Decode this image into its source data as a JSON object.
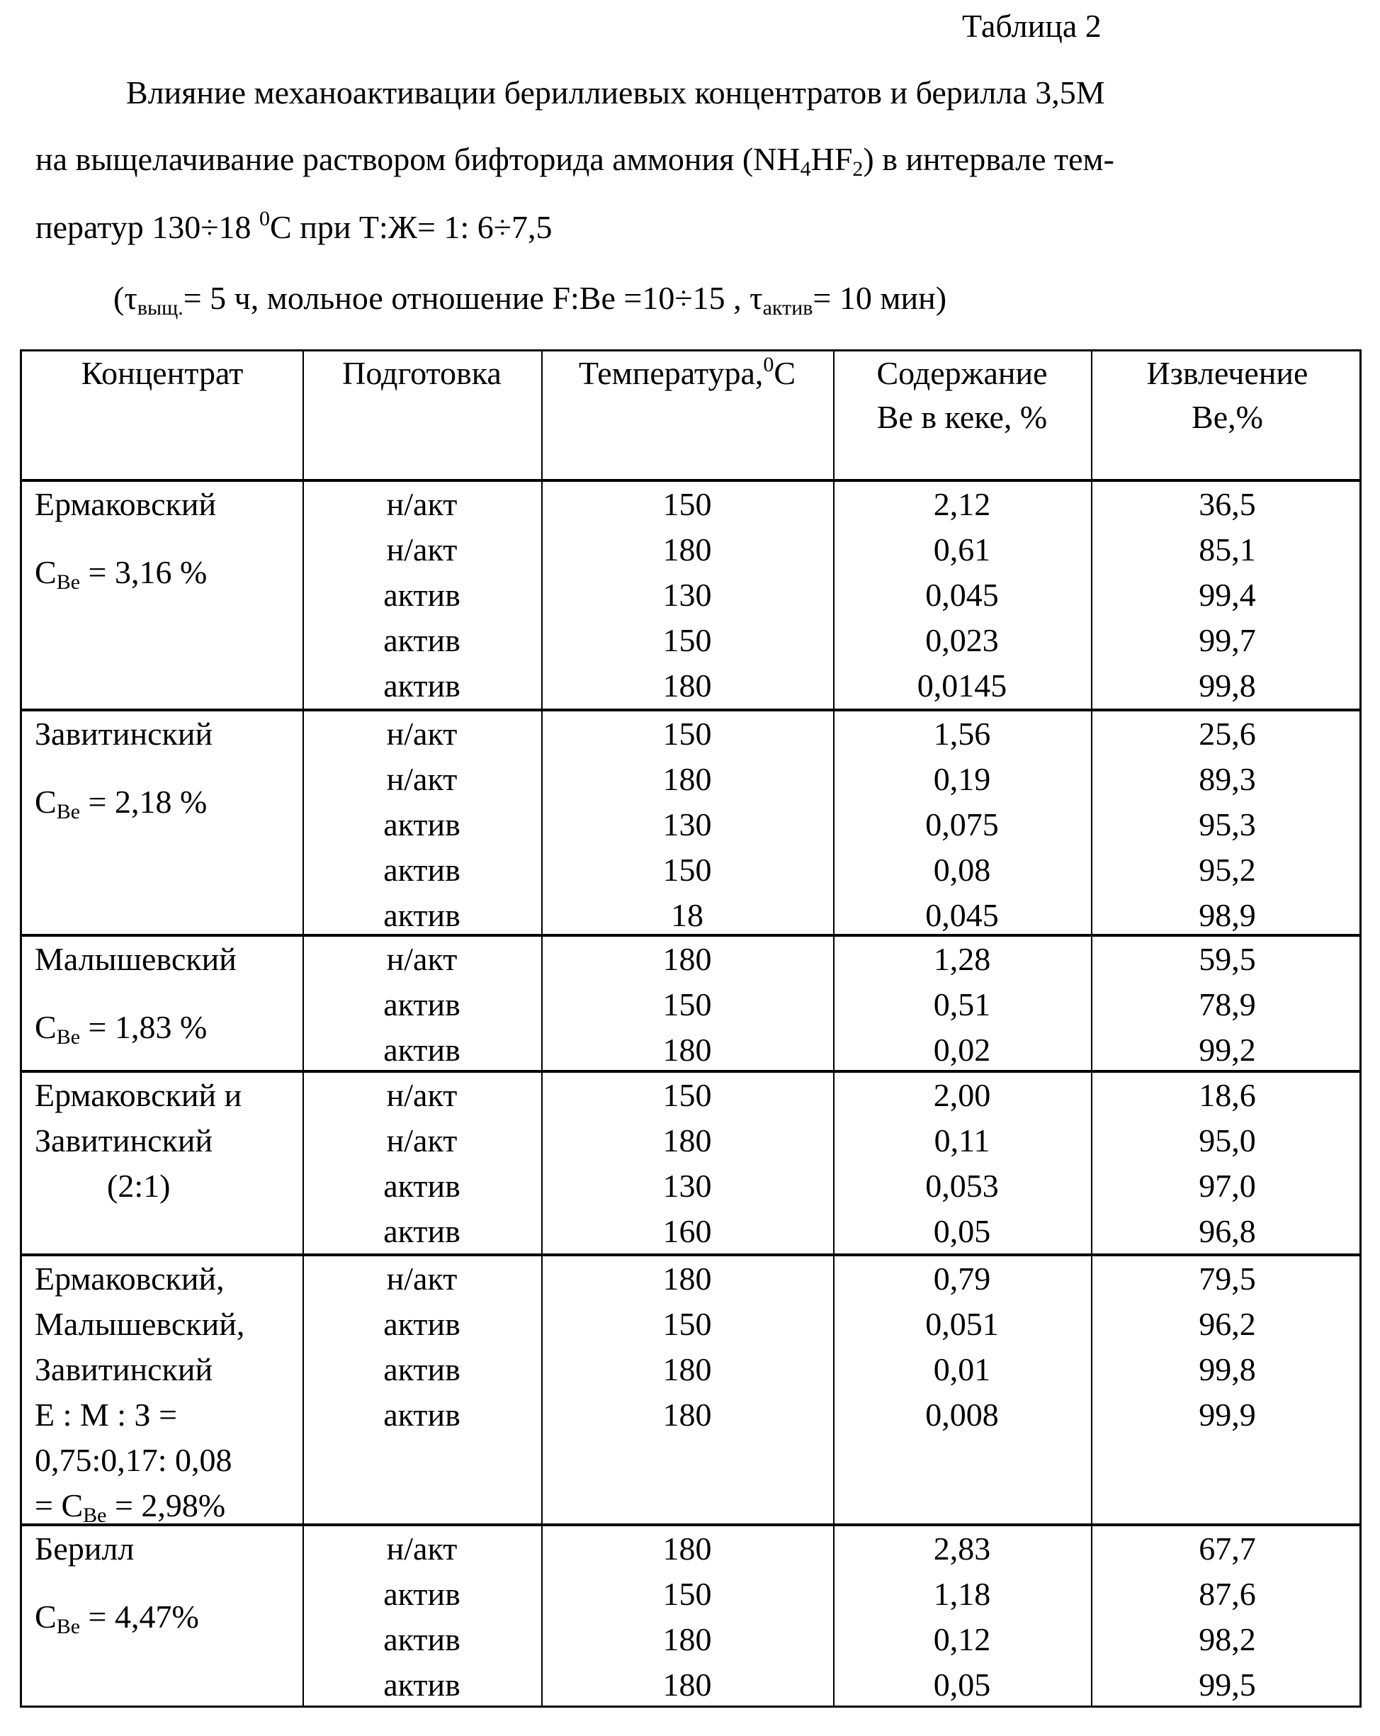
{
  "table_label": "Таблица 2",
  "title": {
    "line1": "Влияние механоактивации бериллиевых концентратов и берилла 3,5М",
    "line2_a": "на выщелачивание раствором бифторида аммония (NH",
    "line2_sub1": "4",
    "line2_b": "HF",
    "line2_sub2": "2",
    "line2_c": ") в интервале тем-",
    "line3_a": "ператур 130÷18 ",
    "line3_sup": "0",
    "line3_b": "С при Т:Ж= 1: 6÷7,5",
    "cond_a": "(τ",
    "cond_sub1": "выщ.",
    "cond_b": "= 5 ч, мольное отношение F:Be =10÷15 , τ",
    "cond_sub2": "актив",
    "cond_c": "= 10 мин)"
  },
  "headers": {
    "concentrate": "Концентрат",
    "preparation": "Подготовка",
    "temperature": "Температура,",
    "temperature_sup": "0",
    "temperature_unit": "С",
    "content_1": "Содержание",
    "content_2": "Be в кеке, %",
    "extraction_1": "Извлечение",
    "extraction_2": "Be,%"
  },
  "groups": [
    {
      "label": [
        "Ермаковский",
        "C_Be = 3,16 %"
      ],
      "rows": [
        [
          "н/акт",
          "150",
          "2,12",
          "36,5"
        ],
        [
          "н/акт",
          "180",
          "0,61",
          "85,1"
        ],
        [
          "актив",
          "130",
          "0,045",
          "99,4"
        ],
        [
          "актив",
          "150",
          "0,023",
          "99,7"
        ],
        [
          "актив",
          "180",
          "0,0145",
          "99,8"
        ]
      ]
    },
    {
      "label": [
        "Завитинский",
        "C_Be = 2,18 %"
      ],
      "rows": [
        [
          "н/акт",
          "150",
          "1,56",
          "25,6"
        ],
        [
          "н/акт",
          "180",
          "0,19",
          "89,3"
        ],
        [
          "актив",
          "130",
          "0,075",
          "95,3"
        ],
        [
          "актив",
          "150",
          "0,08",
          "95,2"
        ],
        [
          "актив",
          "18",
          "0,045",
          "98,9"
        ]
      ]
    },
    {
      "label": [
        "Малышевский",
        "C_Be = 1,83 %"
      ],
      "rows": [
        [
          "н/акт",
          "180",
          "1,28",
          "59,5"
        ],
        [
          "актив",
          "150",
          "0,51",
          "78,9"
        ],
        [
          "актив",
          "180",
          "0,02",
          "99,2"
        ]
      ]
    },
    {
      "label": [
        "Ермаковский и",
        "Завитинский",
        "(2:1)"
      ],
      "rows": [
        [
          "н/акт",
          "150",
          "2,00",
          "18,6"
        ],
        [
          "н/акт",
          "180",
          "0,11",
          "95,0"
        ],
        [
          "актив",
          "130",
          "0,053",
          "97,0"
        ],
        [
          "актив",
          "160",
          "0,05",
          "96,8"
        ]
      ]
    },
    {
      "label": [
        "Ермаковский,",
        "Малышевский,",
        "Завитинский",
        "Е : М : З =",
        "0,75:0,17: 0,08",
        "= C_Be = 2,98%"
      ],
      "rows": [
        [
          "н/акт",
          "180",
          "0,79",
          "79,5"
        ],
        [
          "актив",
          "150",
          "0,051",
          "96,2"
        ],
        [
          "актив",
          "180",
          "0,01",
          "99,8"
        ],
        [
          "актив",
          "180",
          "0,008",
          "99,9"
        ]
      ]
    },
    {
      "label": [
        "Берилл",
        "C_Be = 4,47%"
      ],
      "rows": [
        [
          "н/акт",
          "180",
          "2,83",
          "67,7"
        ],
        [
          "актив",
          "150",
          "1,18",
          "87,6"
        ],
        [
          "актив",
          "180",
          "0,12",
          "98,2"
        ],
        [
          "актив",
          "180",
          "0,05",
          "99,5"
        ]
      ]
    }
  ]
}
